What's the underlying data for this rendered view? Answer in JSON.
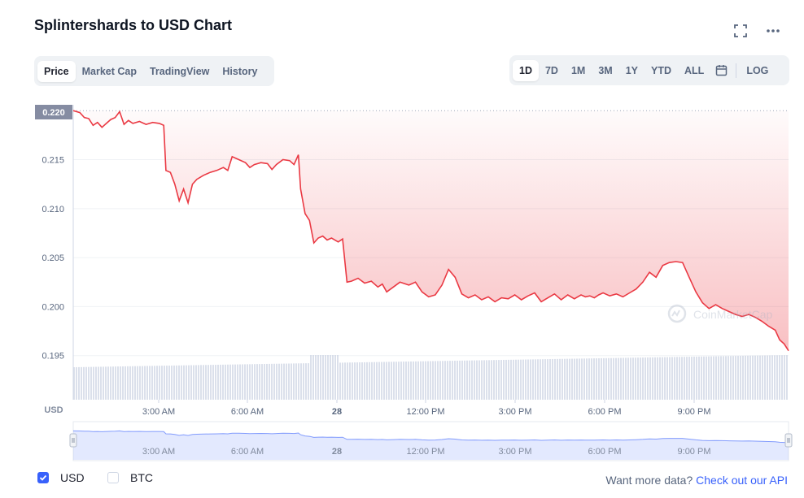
{
  "title": "Splintershards to USD Chart",
  "tabs": [
    {
      "label": "Price"
    },
    {
      "label": "Market Cap"
    },
    {
      "label": "TradingView"
    },
    {
      "label": "History"
    }
  ],
  "ranges": [
    {
      "label": "1D"
    },
    {
      "label": "7D"
    },
    {
      "label": "1M"
    },
    {
      "label": "3M"
    },
    {
      "label": "1Y"
    },
    {
      "label": "YTD"
    },
    {
      "label": "ALL"
    }
  ],
  "log_label": "LOG",
  "icons": {
    "fullscreen": "fullscreen-icon",
    "more": "more-icon",
    "calendar": "calendar-icon"
  },
  "colors": {
    "line": "#ea3943",
    "up": "#16c784",
    "accent": "#3861fb",
    "volume": "#cfd6e4",
    "navigator": "#3861fb"
  },
  "currency_label": "USD",
  "watermark": "CoinMarketCap",
  "chart_data": {
    "type": "line",
    "title": "Splintershards to USD Chart",
    "ylabel": "USD",
    "ylim": [
      0.1905,
      0.2206
    ],
    "yticks": [
      "0.195",
      "0.200",
      "0.205",
      "0.210",
      "0.215"
    ],
    "current_price_label": "0.220",
    "x_ticks": [
      "3:00 AM",
      "6:00 AM",
      "28",
      "12:00 PM",
      "3:00 PM",
      "6:00 PM",
      "9:00 PM"
    ],
    "x_range_hours": [
      0,
      24
    ],
    "x_tick_hours": [
      3,
      6,
      9,
      12,
      15,
      18,
      21
    ],
    "grid": true,
    "legend": "none",
    "series": [
      {
        "points": [
          [
            0,
            0.22
          ],
          [
            0.3,
            0.2198
          ],
          [
            0.5,
            0.2193
          ],
          [
            0.7,
            0.2192
          ],
          [
            0.9,
            0.2185
          ],
          [
            1.1,
            0.2188
          ],
          [
            1.3,
            0.2183
          ],
          [
            1.5,
            0.2187
          ],
          [
            1.7,
            0.2191
          ],
          [
            1.9,
            0.2193
          ],
          [
            2.1,
            0.2199
          ],
          [
            2.3,
            0.2186
          ],
          [
            2.5,
            0.219
          ],
          [
            2.7,
            0.2187
          ],
          [
            3.0,
            0.2189
          ],
          [
            3.3,
            0.2186
          ],
          [
            3.6,
            0.2188
          ],
          [
            3.9,
            0.2187
          ],
          [
            4.1,
            0.2185
          ],
          [
            4.2,
            0.2139
          ],
          [
            4.4,
            0.2137
          ],
          [
            4.6,
            0.2125
          ],
          [
            4.8,
            0.2108
          ],
          [
            5.0,
            0.212
          ],
          [
            5.2,
            0.2106
          ],
          [
            5.4,
            0.2125
          ],
          [
            5.6,
            0.213
          ],
          [
            5.9,
            0.2134
          ],
          [
            6.2,
            0.2137
          ],
          [
            6.5,
            0.2139
          ],
          [
            6.8,
            0.2142
          ],
          [
            7.0,
            0.2139
          ],
          [
            7.2,
            0.2153
          ],
          [
            7.5,
            0.215
          ],
          [
            7.8,
            0.2147
          ],
          [
            8.0,
            0.2142
          ],
          [
            8.2,
            0.2145
          ],
          [
            8.5,
            0.2147
          ],
          [
            8.8,
            0.2146
          ],
          [
            9.0,
            0.214
          ],
          [
            9.2,
            0.2145
          ],
          [
            9.5,
            0.215
          ],
          [
            9.8,
            0.2149
          ],
          [
            10.0,
            0.2145
          ],
          [
            10.2,
            0.2155
          ],
          [
            10.3,
            0.212
          ],
          [
            10.5,
            0.2095
          ],
          [
            10.7,
            0.2088
          ],
          [
            10.9,
            0.2065
          ],
          [
            11.1,
            0.207
          ],
          [
            11.3,
            0.2072
          ],
          [
            11.5,
            0.2068
          ],
          [
            11.7,
            0.207
          ],
          [
            12.0,
            0.2066
          ],
          [
            12.2,
            0.2069
          ],
          [
            12.4,
            0.2025
          ],
          [
            12.6,
            0.2026
          ],
          [
            12.9,
            0.2029
          ],
          [
            13.2,
            0.2024
          ],
          [
            13.5,
            0.2026
          ],
          [
            13.8,
            0.202
          ],
          [
            14.0,
            0.2023
          ],
          [
            14.2,
            0.2015
          ],
          [
            14.5,
            0.202
          ],
          [
            14.8,
            0.2025
          ],
          [
            15.2,
            0.2022
          ],
          [
            15.5,
            0.2025
          ],
          [
            15.8,
            0.2015
          ],
          [
            16.1,
            0.201
          ],
          [
            16.4,
            0.2012
          ],
          [
            16.7,
            0.2022
          ],
          [
            17.0,
            0.2038
          ],
          [
            17.3,
            0.203
          ],
          [
            17.6,
            0.2013
          ],
          [
            17.9,
            0.2009
          ],
          [
            18.2,
            0.2012
          ],
          [
            18.5,
            0.2007
          ],
          [
            18.8,
            0.201
          ],
          [
            19.1,
            0.2005
          ],
          [
            19.4,
            0.2009
          ],
          [
            19.7,
            0.2008
          ],
          [
            20.0,
            0.2012
          ],
          [
            20.3,
            0.2007
          ],
          [
            20.6,
            0.2011
          ],
          [
            20.9,
            0.2014
          ],
          [
            21.2,
            0.2005
          ],
          [
            21.5,
            0.2009
          ],
          [
            21.8,
            0.2013
          ],
          [
            22.1,
            0.2007
          ],
          [
            22.4,
            0.2012
          ],
          [
            22.7,
            0.2008
          ],
          [
            23.0,
            0.2012
          ],
          [
            23.2,
            0.201
          ],
          [
            23.4,
            0.2011
          ],
          [
            23.6,
            0.2009
          ],
          [
            23.8,
            0.2012
          ],
          [
            24.0,
            0.2014
          ],
          [
            24.3,
            0.2011
          ],
          [
            24.6,
            0.2013
          ],
          [
            24.9,
            0.201
          ],
          [
            25.2,
            0.2014
          ],
          [
            25.5,
            0.2018
          ],
          [
            25.8,
            0.2025
          ],
          [
            26.1,
            0.2035
          ],
          [
            26.4,
            0.203
          ],
          [
            26.7,
            0.2042
          ],
          [
            27.0,
            0.2045
          ],
          [
            27.3,
            0.2046
          ],
          [
            27.6,
            0.2045
          ],
          [
            27.9,
            0.203
          ],
          [
            28.2,
            0.2015
          ],
          [
            28.5,
            0.2004
          ],
          [
            28.8,
            0.1998
          ],
          [
            29.1,
            0.2002
          ],
          [
            29.4,
            0.1998
          ],
          [
            29.7,
            0.1995
          ],
          [
            30.0,
            0.1992
          ],
          [
            30.3,
            0.199
          ],
          [
            30.6,
            0.1992
          ],
          [
            30.9,
            0.1989
          ],
          [
            31.2,
            0.1985
          ],
          [
            31.5,
            0.198
          ],
          [
            31.8,
            0.1976
          ],
          [
            32.0,
            0.1966
          ],
          [
            32.2,
            0.1962
          ],
          [
            32.4,
            0.1955
          ]
        ]
      }
    ]
  },
  "navigator": {
    "x_ticks": [
      "3:00 AM",
      "6:00 AM",
      "28",
      "12:00 PM",
      "3:00 PM",
      "6:00 PM",
      "9:00 PM"
    ]
  },
  "options": [
    {
      "label": "USD",
      "checked": true
    },
    {
      "label": "BTC",
      "checked": false
    }
  ],
  "more_data": {
    "text": "Want more data?",
    "link": "Check out our API"
  }
}
